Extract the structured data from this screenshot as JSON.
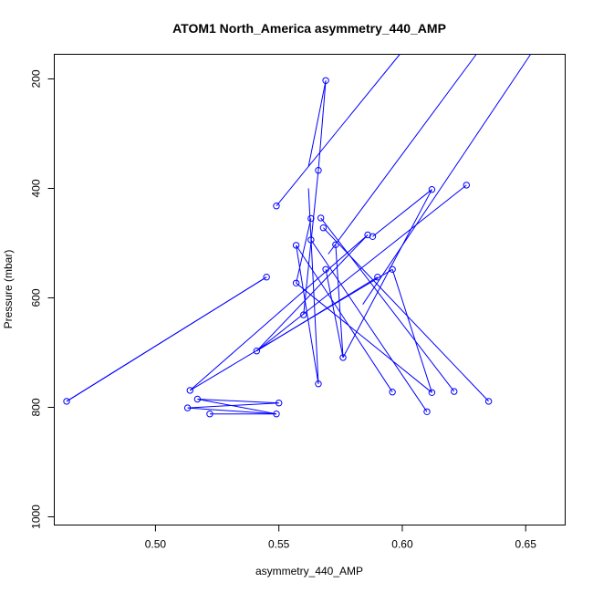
{
  "chart_data": {
    "type": "line",
    "title": "ATOM1 North_America asymmetry_440_AMP",
    "xlabel": "asymmetry_440_AMP",
    "ylabel": "Pressure (mbar)",
    "xlim": [
      0.459,
      0.666
    ],
    "ylim": [
      1015,
      155
    ],
    "y_reversed": true,
    "xticks": [
      0.5,
      0.55,
      0.6,
      0.65
    ],
    "xtick_labels": [
      "0.50",
      "0.55",
      "0.60",
      "0.65"
    ],
    "yticks": [
      200,
      400,
      600,
      800,
      1000
    ],
    "ytick_labels": [
      "200",
      "400",
      "600",
      "800",
      "1000"
    ],
    "grid": false,
    "legend": "none",
    "color": "#0000ff",
    "series": [
      {
        "x": [
          0.569,
          0.566,
          0.565,
          0.566,
          0.55
        ],
        "y": [
          203,
          367,
          421,
          757,
          432
        ],
        "lines_to_top": [
          [
            0.55,
            432
          ],
          [
            0.633,
            150
          ]
        ],
        "note": ""
      }
    ],
    "points": [
      {
        "x": 0.569,
        "y": 203
      },
      {
        "x": 0.566,
        "y": 367
      },
      {
        "x": 0.549,
        "y": 432
      },
      {
        "x": 0.626,
        "y": 394
      },
      {
        "x": 0.612,
        "y": 402
      },
      {
        "x": 0.567,
        "y": 454
      },
      {
        "x": 0.563,
        "y": 455
      },
      {
        "x": 0.568,
        "y": 472
      },
      {
        "x": 0.563,
        "y": 494
      },
      {
        "x": 0.586,
        "y": 485
      },
      {
        "x": 0.588,
        "y": 488
      },
      {
        "x": 0.557,
        "y": 504
      },
      {
        "x": 0.573,
        "y": 503
      },
      {
        "x": 0.569,
        "y": 548
      },
      {
        "x": 0.596,
        "y": 548
      },
      {
        "x": 0.545,
        "y": 562
      },
      {
        "x": 0.59,
        "y": 562
      },
      {
        "x": 0.557,
        "y": 573
      },
      {
        "x": 0.56,
        "y": 631
      },
      {
        "x": 0.541,
        "y": 697
      },
      {
        "x": 0.576,
        "y": 709
      },
      {
        "x": 0.566,
        "y": 757
      },
      {
        "x": 0.514,
        "y": 769
      },
      {
        "x": 0.596,
        "y": 772
      },
      {
        "x": 0.612,
        "y": 773
      },
      {
        "x": 0.621,
        "y": 771
      },
      {
        "x": 0.517,
        "y": 785
      },
      {
        "x": 0.464,
        "y": 789
      },
      {
        "x": 0.635,
        "y": 789
      },
      {
        "x": 0.55,
        "y": 792
      },
      {
        "x": 0.513,
        "y": 801
      },
      {
        "x": 0.61,
        "y": 808
      },
      {
        "x": 0.522,
        "y": 812
      },
      {
        "x": 0.549,
        "y": 812
      }
    ],
    "segments": [
      [
        [
          0.569,
          203
        ],
        [
          0.566,
          367
        ]
      ],
      [
        [
          0.566,
          367
        ],
        [
          0.56,
          631
        ]
      ],
      [
        [
          0.569,
          203
        ],
        [
          0.562,
          360
        ]
      ],
      [
        [
          0.549,
          432
        ],
        [
          0.599,
          155
        ]
      ],
      [
        [
          0.57,
          520
        ],
        [
          0.63,
          155
        ]
      ],
      [
        [
          0.584,
          612
        ],
        [
          0.652,
          155
        ]
      ],
      [
        [
          0.566,
          757
        ],
        [
          0.562,
          400
        ]
      ],
      [
        [
          0.626,
          394
        ],
        [
          0.541,
          697
        ]
      ],
      [
        [
          0.612,
          402
        ],
        [
          0.588,
          488
        ]
      ],
      [
        [
          0.586,
          485
        ],
        [
          0.541,
          697
        ]
      ],
      [
        [
          0.541,
          697
        ],
        [
          0.59,
          562
        ]
      ],
      [
        [
          0.545,
          562
        ],
        [
          0.464,
          789
        ]
      ],
      [
        [
          0.464,
          789
        ],
        [
          0.545,
          562
        ]
      ],
      [
        [
          0.557,
          504
        ],
        [
          0.596,
          772
        ]
      ],
      [
        [
          0.563,
          494
        ],
        [
          0.61,
          808
        ]
      ],
      [
        [
          0.568,
          472
        ],
        [
          0.635,
          789
        ]
      ],
      [
        [
          0.567,
          454
        ],
        [
          0.621,
          771
        ]
      ],
      [
        [
          0.596,
          548
        ],
        [
          0.612,
          773
        ]
      ],
      [
        [
          0.573,
          503
        ],
        [
          0.576,
          709
        ]
      ],
      [
        [
          0.569,
          548
        ],
        [
          0.576,
          709
        ]
      ],
      [
        [
          0.557,
          573
        ],
        [
          0.612,
          773
        ]
      ],
      [
        [
          0.563,
          455
        ],
        [
          0.557,
          573
        ]
      ],
      [
        [
          0.557,
          504
        ],
        [
          0.566,
          757
        ]
      ],
      [
        [
          0.612,
          402
        ],
        [
          0.576,
          709
        ]
      ],
      [
        [
          0.514,
          769
        ],
        [
          0.586,
          485
        ]
      ],
      [
        [
          0.514,
          769
        ],
        [
          0.596,
          548
        ]
      ],
      [
        [
          0.517,
          785
        ],
        [
          0.55,
          792
        ]
      ],
      [
        [
          0.55,
          792
        ],
        [
          0.513,
          801
        ]
      ],
      [
        [
          0.513,
          801
        ],
        [
          0.549,
          812
        ]
      ],
      [
        [
          0.549,
          812
        ],
        [
          0.522,
          812
        ]
      ],
      [
        [
          0.517,
          785
        ],
        [
          0.549,
          812
        ]
      ]
    ]
  }
}
